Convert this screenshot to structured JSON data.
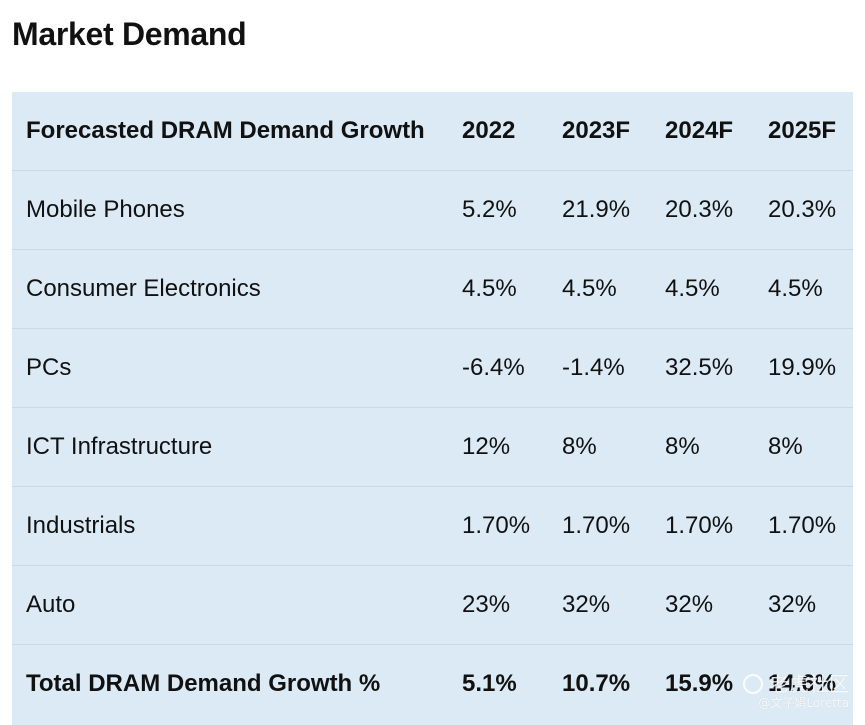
{
  "page": {
    "title": "Market Demand"
  },
  "table": {
    "headers": [
      "Forecasted DRAM Demand Growth",
      "2022",
      "2023F",
      "2024F",
      "2025F"
    ],
    "rows": [
      [
        "Mobile Phones",
        "5.2%",
        "21.9%",
        "20.3%",
        "20.3%"
      ],
      [
        "Consumer Electronics",
        "4.5%",
        "4.5%",
        "4.5%",
        "4.5%"
      ],
      [
        "PCs",
        "-6.4%",
        "-1.4%",
        "32.5%",
        "19.9%"
      ],
      [
        "ICT Infrastructure",
        "12%",
        "8%",
        "8%",
        "8%"
      ],
      [
        "Industrials",
        "1.70%",
        "1.70%",
        "1.70%",
        "1.70%"
      ],
      [
        "Auto",
        "23%",
        "32%",
        "32%",
        "32%"
      ]
    ],
    "total": [
      "Total DRAM Demand Growth %",
      "5.1%",
      "10.7%",
      "15.9%",
      "14.6%"
    ]
  },
  "watermark": {
    "line1": "老虎社区",
    "line2": "@文子娟Loretta"
  },
  "colors": {
    "table_background": "#dbeaf4",
    "row_divider": "#c6dbe8",
    "text": "#111111"
  }
}
